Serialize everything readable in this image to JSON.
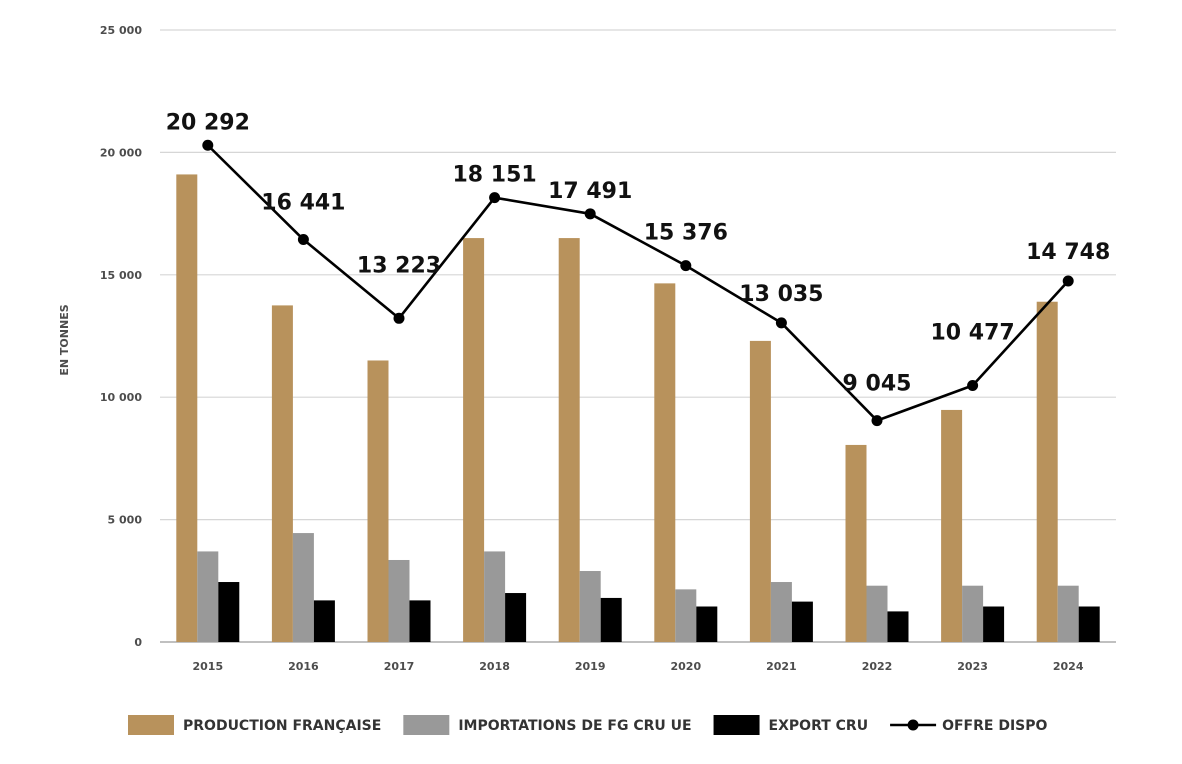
{
  "chart_data": {
    "type": "bar",
    "title": "",
    "xlabel": "",
    "ylabel": "EN TONNES",
    "ylim": [
      0,
      25000
    ],
    "yticks": [
      0,
      5000,
      10000,
      15000,
      20000,
      25000
    ],
    "ytick_labels": [
      "0",
      "5 000",
      "10 000",
      "15 000",
      "20 000",
      "25 000"
    ],
    "grid": true,
    "legend_position": "bottom",
    "categories": [
      "2015",
      "2016",
      "2017",
      "2018",
      "2019",
      "2020",
      "2021",
      "2022",
      "2023",
      "2024"
    ],
    "series": [
      {
        "name": "PRODUCTION FRANÇAISE",
        "kind": "bar",
        "color": "#b8925c",
        "values": [
          19100,
          13750,
          11500,
          16500,
          16500,
          14650,
          12300,
          8050,
          9480,
          13900
        ]
      },
      {
        "name": "IMPORTATIONS DE FG CRU UE",
        "kind": "bar",
        "color": "#999999",
        "values": [
          3700,
          4450,
          3350,
          3700,
          2900,
          2150,
          2450,
          2300,
          2300,
          2300
        ]
      },
      {
        "name": "EXPORT CRU",
        "kind": "bar",
        "color": "#000000",
        "values": [
          2450,
          1700,
          1700,
          2000,
          1800,
          1450,
          1650,
          1250,
          1450,
          1450
        ]
      },
      {
        "name": "OFFRE DISPO",
        "kind": "line",
        "color": "#000000",
        "values": [
          20292,
          16441,
          13223,
          18151,
          17491,
          15376,
          13035,
          9045,
          10477,
          14748
        ],
        "labels": [
          "20 292",
          "16 441",
          "13 223",
          "18 151",
          "17 491",
          "15 376",
          "13 035",
          "9 045",
          "10 477",
          "14 748"
        ]
      }
    ]
  }
}
